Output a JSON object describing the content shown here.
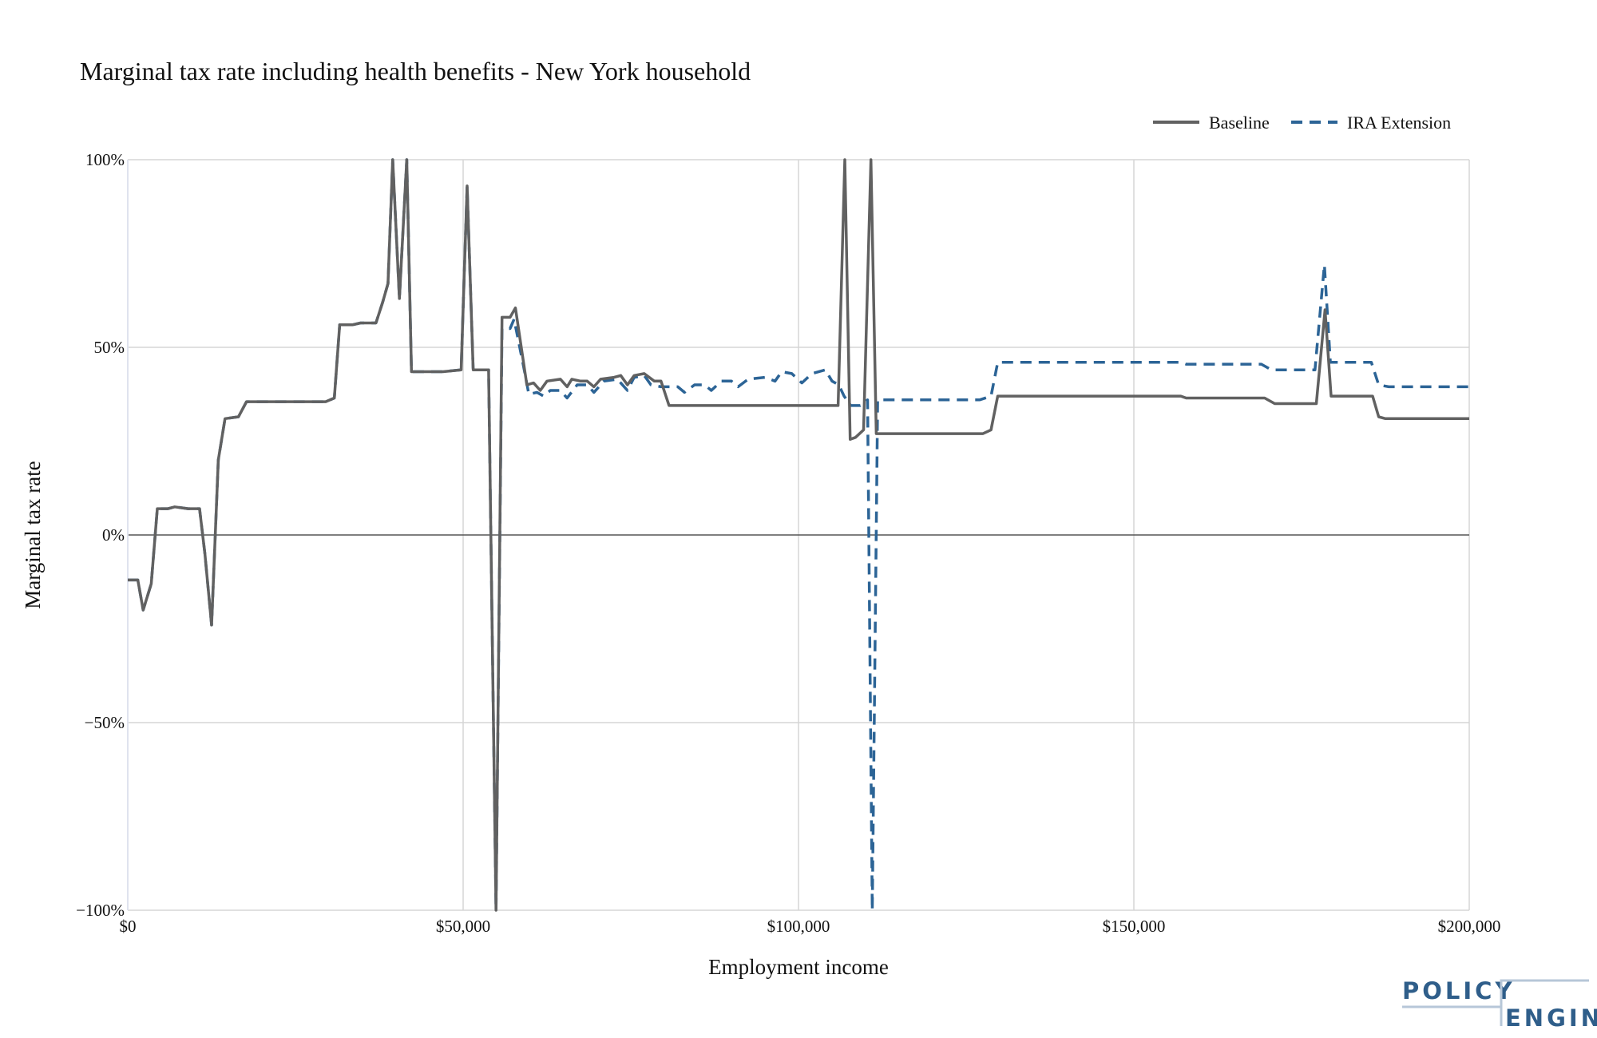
{
  "chart_data": {
    "type": "line",
    "title": "Marginal tax rate including health benefits - New York household",
    "xlabel": "Employment income",
    "ylabel": "Marginal tax rate",
    "xlim": [
      0,
      200000
    ],
    "ylim": [
      -1,
      1
    ],
    "x_ticks": [
      {
        "value": 0,
        "label": "$0"
      },
      {
        "value": 50000,
        "label": "$50,000"
      },
      {
        "value": 100000,
        "label": "$100,000"
      },
      {
        "value": 150000,
        "label": "$150,000"
      },
      {
        "value": 200000,
        "label": "$200,000"
      }
    ],
    "y_ticks": [
      {
        "value": 1,
        "label": "100%"
      },
      {
        "value": 0.5,
        "label": "50%"
      },
      {
        "value": 0,
        "label": "0%"
      },
      {
        "value": -0.5,
        "label": "−50%"
      },
      {
        "value": -1,
        "label": "−100%"
      }
    ],
    "grid": true,
    "legend_position": "top-right",
    "series": [
      {
        "name": "Baseline",
        "color": "#616161",
        "dash": "solid",
        "points": [
          [
            0,
            -0.12
          ],
          [
            1500,
            -0.12
          ],
          [
            2300,
            -0.2
          ],
          [
            3500,
            -0.13
          ],
          [
            4400,
            0.07
          ],
          [
            6000,
            0.07
          ],
          [
            7000,
            0.075
          ],
          [
            9000,
            0.07
          ],
          [
            10700,
            0.07
          ],
          [
            11500,
            -0.05
          ],
          [
            12500,
            -0.24
          ],
          [
            13500,
            0.2
          ],
          [
            14500,
            0.31
          ],
          [
            16500,
            0.315
          ],
          [
            17700,
            0.355
          ],
          [
            22000,
            0.355
          ],
          [
            25000,
            0.355
          ],
          [
            29500,
            0.355
          ],
          [
            30800,
            0.365
          ],
          [
            31600,
            0.56
          ],
          [
            33500,
            0.56
          ],
          [
            34700,
            0.565
          ],
          [
            37000,
            0.565
          ],
          [
            38000,
            0.62
          ],
          [
            38800,
            0.67
          ],
          [
            39500,
            1.0
          ],
          [
            40500,
            0.63
          ],
          [
            41600,
            1.0
          ],
          [
            42300,
            0.435
          ],
          [
            47000,
            0.435
          ],
          [
            49700,
            0.44
          ],
          [
            50600,
            0.93
          ],
          [
            51500,
            0.44
          ],
          [
            53300,
            0.44
          ],
          [
            53800,
            0.44
          ],
          [
            54900,
            -1.0
          ],
          [
            55800,
            0.58
          ],
          [
            57000,
            0.58
          ],
          [
            57800,
            0.605
          ],
          [
            59500,
            0.4
          ],
          [
            60500,
            0.405
          ],
          [
            61500,
            0.385
          ],
          [
            62500,
            0.41
          ],
          [
            64500,
            0.415
          ],
          [
            65500,
            0.395
          ],
          [
            66200,
            0.415
          ],
          [
            67500,
            0.41
          ],
          [
            68500,
            0.41
          ],
          [
            69500,
            0.395
          ],
          [
            70500,
            0.415
          ],
          [
            72500,
            0.42
          ],
          [
            73500,
            0.425
          ],
          [
            74500,
            0.4
          ],
          [
            75500,
            0.425
          ],
          [
            77000,
            0.43
          ],
          [
            78500,
            0.41
          ],
          [
            79500,
            0.41
          ],
          [
            80700,
            0.345
          ],
          [
            90000,
            0.345
          ],
          [
            100000,
            0.345
          ],
          [
            105900,
            0.345
          ],
          [
            106900,
            1.0
          ],
          [
            107700,
            0.255
          ],
          [
            108500,
            0.26
          ],
          [
            109700,
            0.28
          ],
          [
            110800,
            1.0
          ],
          [
            111600,
            0.27
          ],
          [
            117000,
            0.27
          ],
          [
            122000,
            0.27
          ],
          [
            127500,
            0.27
          ],
          [
            128700,
            0.28
          ],
          [
            129700,
            0.37
          ],
          [
            140000,
            0.37
          ],
          [
            150000,
            0.37
          ],
          [
            157000,
            0.37
          ],
          [
            157800,
            0.365
          ],
          [
            169500,
            0.365
          ],
          [
            171000,
            0.35
          ],
          [
            177200,
            0.35
          ],
          [
            178500,
            0.6
          ],
          [
            179400,
            0.37
          ],
          [
            183000,
            0.37
          ],
          [
            185600,
            0.37
          ],
          [
            186500,
            0.315
          ],
          [
            187500,
            0.31
          ],
          [
            193000,
            0.31
          ],
          [
            200000,
            0.31
          ]
        ]
      },
      {
        "name": "IRA Extension",
        "color": "#2c6496",
        "dash": "dashed",
        "points": [
          [
            0,
            -0.12
          ],
          [
            1500,
            -0.12
          ],
          [
            2300,
            -0.2
          ],
          [
            3500,
            -0.13
          ],
          [
            4400,
            0.07
          ],
          [
            6000,
            0.07
          ],
          [
            7000,
            0.075
          ],
          [
            9000,
            0.07
          ],
          [
            10700,
            0.07
          ],
          [
            11500,
            -0.05
          ],
          [
            12500,
            -0.24
          ],
          [
            13500,
            0.2
          ],
          [
            14500,
            0.31
          ],
          [
            16500,
            0.315
          ],
          [
            17700,
            0.355
          ],
          [
            22000,
            0.355
          ],
          [
            25000,
            0.355
          ],
          [
            29500,
            0.355
          ],
          [
            30800,
            0.365
          ],
          [
            31600,
            0.56
          ],
          [
            33500,
            0.56
          ],
          [
            34700,
            0.565
          ],
          [
            37000,
            0.565
          ],
          [
            38000,
            0.62
          ],
          [
            38800,
            0.67
          ],
          [
            39500,
            1.0
          ],
          [
            40500,
            0.63
          ],
          [
            41600,
            1.0
          ],
          [
            42300,
            0.435
          ],
          [
            47000,
            0.435
          ],
          [
            49700,
            0.44
          ],
          [
            50600,
            0.93
          ],
          [
            51500,
            0.44
          ],
          [
            53300,
            0.44
          ],
          [
            53800,
            0.44
          ],
          [
            54900,
            -1.0
          ],
          [
            55800,
            0.55
          ],
          [
            57000,
            0.55
          ],
          [
            57600,
            0.575
          ],
          [
            59000,
            0.45
          ],
          [
            59800,
            0.375
          ],
          [
            61000,
            0.38
          ],
          [
            62000,
            0.37
          ],
          [
            63000,
            0.385
          ],
          [
            64500,
            0.385
          ],
          [
            65500,
            0.365
          ],
          [
            67000,
            0.4
          ],
          [
            68500,
            0.4
          ],
          [
            69500,
            0.38
          ],
          [
            71000,
            0.41
          ],
          [
            73000,
            0.415
          ],
          [
            74500,
            0.385
          ],
          [
            75500,
            0.42
          ],
          [
            77000,
            0.425
          ],
          [
            78000,
            0.4
          ],
          [
            79500,
            0.395
          ],
          [
            80500,
            0.395
          ],
          [
            82000,
            0.395
          ],
          [
            83000,
            0.38
          ],
          [
            84500,
            0.4
          ],
          [
            86000,
            0.4
          ],
          [
            87000,
            0.385
          ],
          [
            88500,
            0.41
          ],
          [
            90000,
            0.41
          ],
          [
            91000,
            0.395
          ],
          [
            92500,
            0.415
          ],
          [
            95000,
            0.42
          ],
          [
            96500,
            0.41
          ],
          [
            97500,
            0.435
          ],
          [
            99000,
            0.43
          ],
          [
            100500,
            0.405
          ],
          [
            102000,
            0.43
          ],
          [
            104000,
            0.44
          ],
          [
            105000,
            0.41
          ],
          [
            106000,
            0.4
          ],
          [
            106800,
            0.37
          ],
          [
            107800,
            0.345
          ],
          [
            109200,
            0.345
          ],
          [
            110300,
            0.36
          ],
          [
            111000,
            -1.0
          ],
          [
            111800,
            0.36
          ],
          [
            120000,
            0.36
          ],
          [
            127000,
            0.36
          ],
          [
            128700,
            0.37
          ],
          [
            129700,
            0.46
          ],
          [
            140000,
            0.46
          ],
          [
            150000,
            0.46
          ],
          [
            157000,
            0.46
          ],
          [
            157800,
            0.455
          ],
          [
            169000,
            0.455
          ],
          [
            170500,
            0.44
          ],
          [
            177000,
            0.44
          ],
          [
            178400,
            0.72
          ],
          [
            179300,
            0.46
          ],
          [
            183000,
            0.46
          ],
          [
            185400,
            0.46
          ],
          [
            186500,
            0.4
          ],
          [
            188000,
            0.395
          ],
          [
            193000,
            0.395
          ],
          [
            200000,
            0.395
          ]
        ]
      }
    ]
  },
  "branding": {
    "logo_line1": "POLICY",
    "logo_line2": "ENGINE"
  }
}
